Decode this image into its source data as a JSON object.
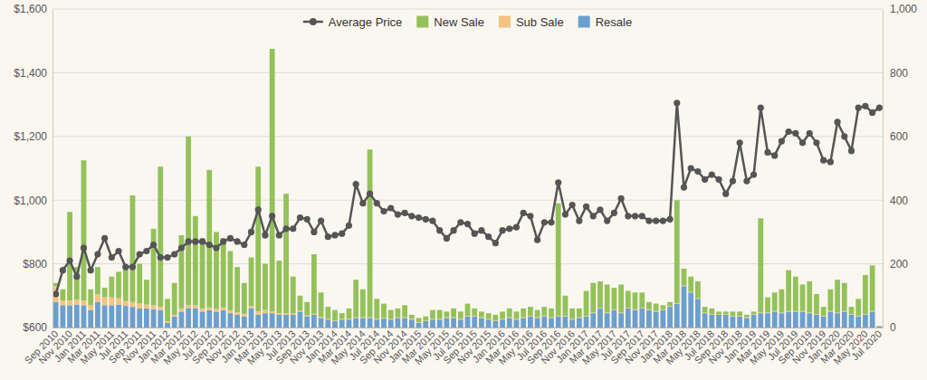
{
  "chart_data": {
    "type": "bar",
    "categories": [
      "Sep 2010",
      null,
      "Nov 2010",
      null,
      "Jan 2011",
      null,
      "Mar 2011",
      null,
      "May 2011",
      null,
      "Jul 2011",
      null,
      "Sep 2011",
      null,
      "Nov 2011",
      null,
      "Jan 2012",
      null,
      "Mar 2012",
      null,
      "May 2012",
      null,
      "Jul 2012",
      null,
      "Sep 2012",
      null,
      "Nov 2012",
      null,
      "Jan 2013",
      null,
      "Mar 2013",
      null,
      "May 2013",
      null,
      "Jul 2013",
      null,
      "Sep 2013",
      null,
      "Nov 2013",
      null,
      "Jan 2014",
      null,
      "Mar 2014",
      null,
      "May 2014",
      null,
      "Jul 2014",
      null,
      "Sep 2014",
      null,
      "Nov 2014",
      null,
      "Jan 2015",
      null,
      "Mar 2015",
      null,
      "May 2015",
      null,
      "Jul 2015",
      null,
      "Sep 2015",
      null,
      "Nov 2015",
      null,
      "Jan 2016",
      null,
      "Mar 2016",
      null,
      "May 2016",
      null,
      "Jul 2016",
      null,
      "Sep 2016",
      null,
      "Nov 2016",
      null,
      "Jan 2017",
      null,
      "Mar 2017",
      null,
      "May 2017",
      null,
      "Jul 2017",
      null,
      "Sep 2017",
      null,
      "Nov 2017",
      null,
      "Jan 2018",
      null,
      "Mar 2018",
      null,
      "May 2018",
      null,
      "Jul 2018",
      null,
      "Sep 2018",
      null,
      "Nov 2018",
      null,
      "Jan 2019",
      null,
      "Mar 2019",
      null,
      "May 2019",
      null,
      "Jul 2019",
      null,
      "Sep 2019",
      null,
      "Nov 2019",
      null,
      "Jan 2020",
      null,
      "Mar 2020",
      null,
      "May 2020",
      null,
      "Jul 2020"
    ],
    "series": [
      {
        "name": "Average Price",
        "type": "line",
        "axis": "y",
        "color": "#555555",
        "marker": "circle",
        "line_style": "solid",
        "values": [
          705,
          780,
          810,
          760,
          850,
          780,
          830,
          880,
          820,
          840,
          790,
          790,
          830,
          840,
          860,
          820,
          820,
          830,
          850,
          870,
          870,
          870,
          860,
          850,
          870,
          880,
          870,
          860,
          900,
          970,
          890,
          950,
          890,
          910,
          910,
          945,
          940,
          900,
          935,
          885,
          890,
          895,
          920,
          1050,
          990,
          1020,
          990,
          965,
          975,
          955,
          960,
          950,
          945,
          940,
          935,
          905,
          880,
          905,
          930,
          925,
          895,
          905,
          885,
          865,
          905,
          910,
          915,
          960,
          950,
          875,
          930,
          930,
          1055,
          955,
          985,
          935,
          980,
          950,
          970,
          935,
          960,
          1005,
          950,
          950,
          950,
          935,
          935,
          935,
          940,
          1305,
          1040,
          1100,
          1090,
          1065,
          1080,
          1065,
          1020,
          1060,
          1180,
          1060,
          1080,
          1290,
          1150,
          1140,
          1185,
          1215,
          1210,
          1180,
          1210,
          1180,
          1125,
          1120,
          1245,
          1200,
          1155,
          1290,
          1295,
          1275,
          1290
        ]
      },
      {
        "name": "New Sale",
        "type": "bar",
        "axis": "y2",
        "color": "#94c15a",
        "values": [
          10,
          35,
          278,
          103,
          440,
          50,
          85,
          30,
          65,
          83,
          107,
          335,
          125,
          78,
          240,
          440,
          70,
          100,
          230,
          530,
          280,
          220,
          432,
          242,
          217,
          187,
          142,
          97,
          152,
          455,
          145,
          825,
          165,
          375,
          115,
          47,
          42,
          187,
          77,
          38,
          33,
          18,
          33,
          118,
          88,
          527,
          63,
          45,
          28,
          28,
          38,
          13,
          13,
          13,
          28,
          28,
          18,
          28,
          23,
          38,
          23,
          18,
          18,
          18,
          23,
          28,
          23,
          28,
          28,
          23,
          28,
          28,
          353,
          63,
          33,
          28,
          78,
          93,
          83,
          88,
          68,
          88,
          53,
          53,
          48,
          23,
          23,
          13,
          13,
          323,
          53,
          48,
          53,
          18,
          18,
          8,
          8,
          13,
          13,
          8,
          8,
          296,
          48,
          58,
          73,
          128,
          108,
          83,
          98,
          63,
          28,
          68,
          103,
          88,
          23,
          53,
          123,
          143,
          2
        ]
      },
      {
        "name": "Sub Sale",
        "type": "bar",
        "axis": "y2",
        "color": "#f3c381",
        "values": [
          50,
          15,
          15,
          15,
          15,
          15,
          25,
          25,
          25,
          20,
          15,
          15,
          15,
          12,
          12,
          10,
          5,
          5,
          10,
          10,
          10,
          10,
          8,
          8,
          8,
          8,
          8,
          8,
          8,
          10,
          10,
          5,
          5,
          5,
          5,
          3,
          3,
          3,
          3,
          2,
          2,
          2,
          2,
          2,
          2,
          2,
          2,
          2,
          2,
          2,
          2,
          2,
          2,
          2,
          2,
          2,
          2,
          2,
          2,
          2,
          2,
          2,
          2,
          2,
          2,
          2,
          2,
          2,
          2,
          2,
          2,
          2,
          2,
          2,
          2,
          2,
          2,
          2,
          2,
          2,
          2,
          2,
          2,
          2,
          2,
          2,
          2,
          2,
          2,
          2,
          2,
          2,
          2,
          2,
          2,
          2,
          2,
          2,
          2,
          2,
          2,
          2,
          2,
          2,
          2,
          2,
          2,
          2,
          2,
          2,
          2,
          2,
          2,
          2,
          2,
          2,
          2,
          2,
          0
        ]
      },
      {
        "name": "Resale",
        "type": "bar",
        "axis": "y2",
        "color": "#6b9fce",
        "values": [
          80,
          70,
          70,
          72,
          70,
          55,
          80,
          70,
          70,
          72,
          68,
          65,
          60,
          60,
          58,
          55,
          15,
          35,
          50,
          60,
          60,
          50,
          55,
          50,
          55,
          45,
          40,
          35,
          60,
          40,
          45,
          45,
          40,
          40,
          40,
          50,
          35,
          40,
          30,
          25,
          20,
          25,
          25,
          30,
          30,
          30,
          25,
          28,
          25,
          30,
          30,
          25,
          15,
          20,
          25,
          25,
          30,
          30,
          25,
          35,
          35,
          30,
          25,
          20,
          25,
          30,
          25,
          30,
          35,
          30,
          35,
          30,
          35,
          35,
          25,
          30,
          35,
          45,
          60,
          45,
          55,
          45,
          60,
          55,
          60,
          55,
          50,
          55,
          65,
          75,
          130,
          110,
          90,
          45,
          40,
          40,
          40,
          35,
          35,
          30,
          40,
          45,
          45,
          50,
          45,
          50,
          50,
          50,
          45,
          40,
          35,
          50,
          45,
          50,
          40,
          35,
          40,
          50,
          3
        ]
      }
    ],
    "ylim": [
      600,
      1600
    ],
    "yticks": [
      {
        "value": 600,
        "label": "$600"
      },
      {
        "value": 800,
        "label": "$800"
      },
      {
        "value": 1000,
        "label": "$1,000"
      },
      {
        "value": 1200,
        "label": "$1,200"
      },
      {
        "value": 1400,
        "label": "$1,400"
      },
      {
        "value": 1600,
        "label": "$1,600"
      }
    ],
    "y2lim": [
      0,
      1000
    ],
    "y2ticks": [
      0,
      200,
      400,
      600,
      800,
      {
        "value": 1000,
        "label": "1,000"
      }
    ],
    "stacked": true,
    "grid": true,
    "legend": "top"
  }
}
